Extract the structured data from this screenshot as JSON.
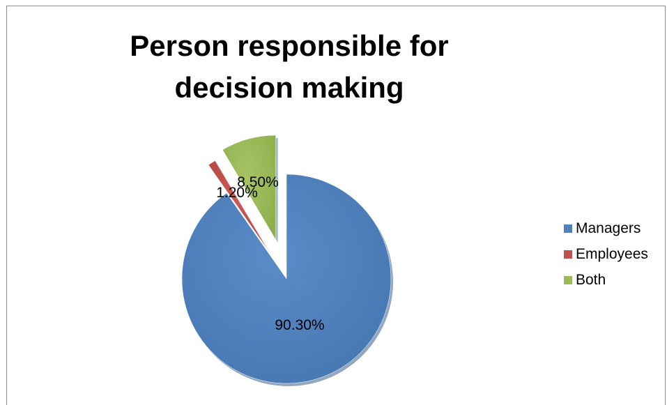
{
  "chart_data": {
    "type": "pie",
    "title": "Person responsible for decision making",
    "categories": [
      "Managers",
      "Employees",
      "Both"
    ],
    "values": [
      90.3,
      1.2,
      8.5
    ],
    "data_labels": [
      "90.30%",
      "1.20%",
      "8.50%"
    ],
    "colors": [
      "#4f81bd",
      "#c0504d",
      "#9bbb59"
    ],
    "exploded": true,
    "legend_position": "right"
  }
}
